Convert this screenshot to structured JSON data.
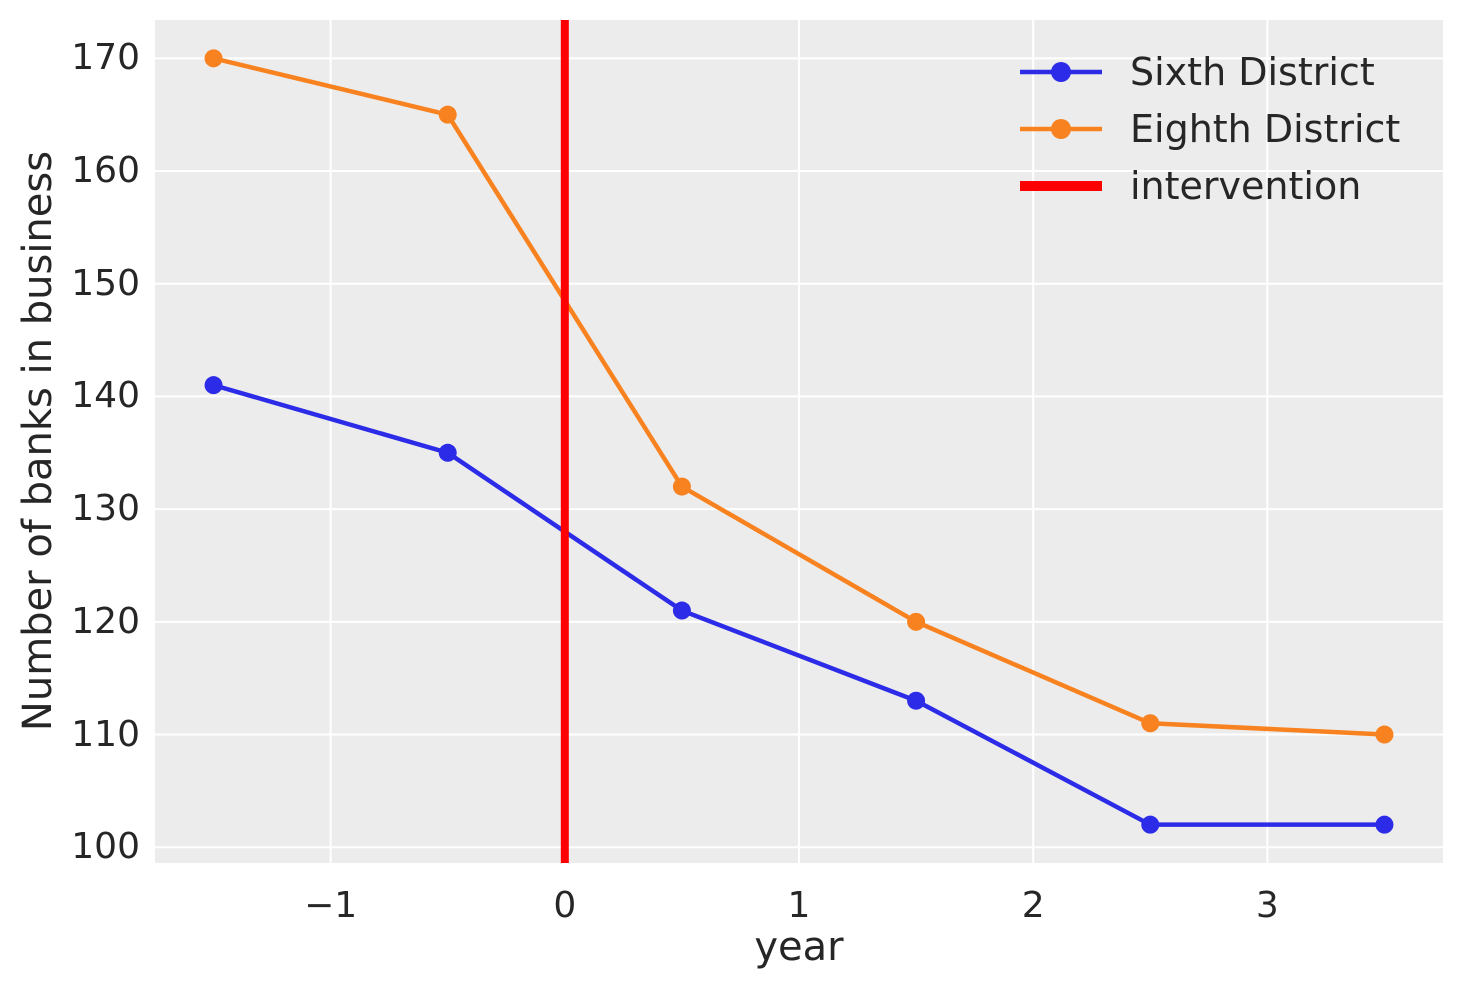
{
  "figure": {
    "background": "#ffffff",
    "plot_background": "#ececec",
    "grid_color": "#ffffff",
    "text_color": "#262626"
  },
  "chart_data": {
    "type": "line",
    "title": "",
    "xlabel": "year",
    "ylabel": "Number of banks in business",
    "xlim": [
      -1.75,
      3.75
    ],
    "ylim": [
      98.6,
      173.4
    ],
    "grid": true,
    "legend_position": "upper right",
    "xticks": [
      {
        "value": -1,
        "label": "−1"
      },
      {
        "value": 0,
        "label": "0"
      },
      {
        "value": 1,
        "label": "1"
      },
      {
        "value": 2,
        "label": "2"
      },
      {
        "value": 3,
        "label": "3"
      }
    ],
    "yticks": [
      {
        "value": 100,
        "label": "100"
      },
      {
        "value": 110,
        "label": "110"
      },
      {
        "value": 120,
        "label": "120"
      },
      {
        "value": 130,
        "label": "130"
      },
      {
        "value": 140,
        "label": "140"
      },
      {
        "value": 150,
        "label": "150"
      },
      {
        "value": 160,
        "label": "160"
      },
      {
        "value": 170,
        "label": "170"
      }
    ],
    "x": [
      -1.5,
      -0.5,
      0.5,
      1.5,
      2.5,
      3.5
    ],
    "series": [
      {
        "name": "Sixth District",
        "color": "#2b2be8",
        "marker": "circle",
        "values": [
          141,
          135,
          121,
          113,
          102,
          102
        ]
      },
      {
        "name": "Eighth District",
        "color": "#f8821f",
        "marker": "circle",
        "values": [
          170,
          165,
          132,
          120,
          111,
          110
        ]
      }
    ],
    "intervention": {
      "label": "intervention",
      "x": 0,
      "color": "#ff0000"
    }
  }
}
